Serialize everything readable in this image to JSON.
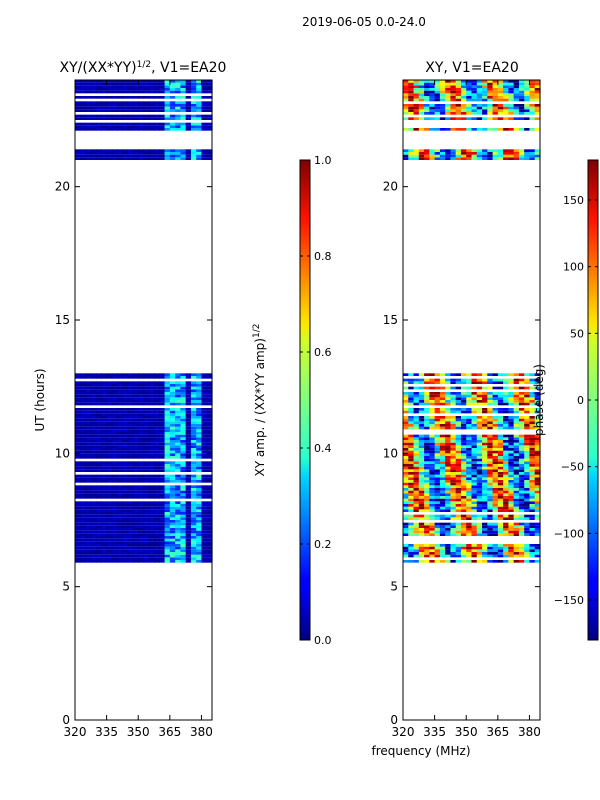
{
  "suptitle": "2019-06-05 0.0-24.0",
  "chart_data": [
    {
      "type": "heatmap",
      "title": "XY/(XX*YY)^1/2, V1=EA20",
      "title_main": "XY/(XX*YY)",
      "title_sup": "1/2",
      "title_tail": ", V1=EA20",
      "xlabel": "",
      "ylabel": "UT (hours)",
      "xlim": [
        320,
        385
      ],
      "ylim": [
        0,
        24
      ],
      "xticks": [
        320,
        335,
        350,
        365,
        380
      ],
      "yticks": [
        0,
        5,
        10,
        15,
        20
      ],
      "colorscale": "jet",
      "colorbar": {
        "label": "XY amp. / (XX*YY amp)^1/2",
        "label_main": "XY amp. / (XX*YY amp)",
        "label_sup": "1/2",
        "range": [
          0.0,
          1.0
        ],
        "ticks": [
          "0.0",
          "0.2",
          "0.4",
          "0.6",
          "0.8",
          "1.0"
        ],
        "tick_values": [
          0.0,
          0.2,
          0.4,
          0.6,
          0.8,
          1.0
        ]
      },
      "data_time_blocks_hours": [
        [
          5.8,
          13.0
        ],
        [
          21.0,
          21.4
        ],
        [
          22.1,
          24.0
        ]
      ],
      "typical_value": 0.0,
      "bright_channels_mhz": [
        [
          362,
          367
        ],
        [
          368,
          372
        ],
        [
          375,
          380
        ]
      ]
    },
    {
      "type": "heatmap",
      "title": "XY, V1=EA20",
      "xlabel": "frequency (MHz)",
      "ylabel": "",
      "xlim": [
        320,
        385
      ],
      "ylim": [
        0,
        24
      ],
      "xticks": [
        320,
        335,
        350,
        365,
        380
      ],
      "yticks": [
        0,
        5,
        10,
        15,
        20
      ],
      "colorscale": "jet",
      "colorbar": {
        "label": "phase (deg)",
        "range": [
          -180,
          180
        ],
        "ticks": [
          "150",
          "100",
          "50",
          "0",
          "−50",
          "−100",
          "−150"
        ],
        "tick_values": [
          150,
          100,
          50,
          0,
          -50,
          -100,
          -150
        ]
      },
      "data_time_blocks_hours": [
        [
          5.8,
          13.0
        ],
        [
          21.0,
          21.4
        ],
        [
          22.1,
          24.0
        ]
      ]
    }
  ]
}
